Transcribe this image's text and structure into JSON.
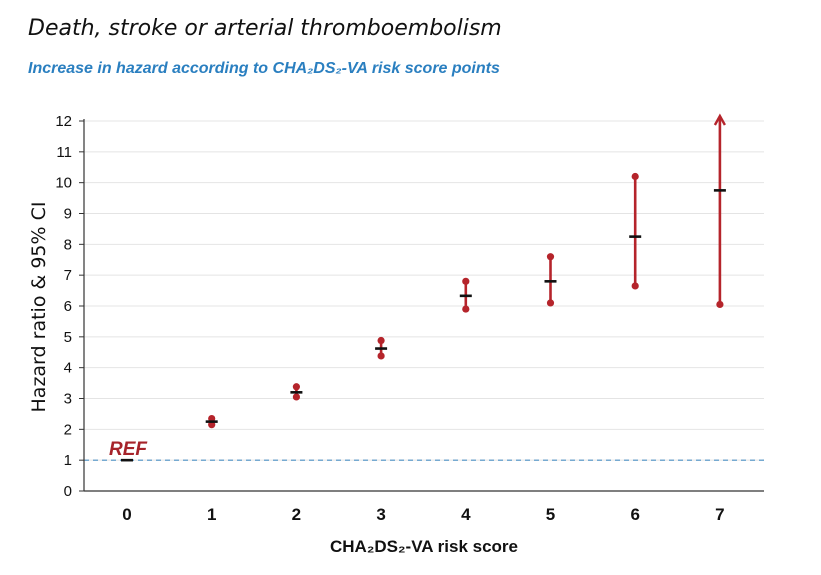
{
  "title": "Death, stroke or arterial thromboembolism",
  "subtitle": "Increase in hazard according to CHA₂DS₂-VA risk score points",
  "colors": {
    "ci": "#b5242b",
    "point": "#111111",
    "ref_line": "#4a90c4",
    "subtitle": "#2a7fc0",
    "axis": "#333333"
  },
  "chart_data": {
    "type": "errorbar",
    "title": "Death, stroke or arterial thromboembolism",
    "subtitle": "Increase in hazard according to CHA₂DS₂-VA risk score points",
    "xlabel": "CHA₂DS₂-VA risk score",
    "ylabel": "Hazard ratio & 95% CI",
    "categories": [
      "0",
      "1",
      "2",
      "3",
      "4",
      "5",
      "6",
      "7"
    ],
    "ylim": [
      0,
      12
    ],
    "yticks": [
      0,
      1,
      2,
      3,
      4,
      5,
      6,
      7,
      8,
      9,
      10,
      11,
      12
    ],
    "grid": true,
    "reference_line": 1,
    "reference_label": "REF",
    "points": [
      {
        "x": "0",
        "hr": 1.0,
        "lower": null,
        "upper": null
      },
      {
        "x": "1",
        "hr": 2.25,
        "lower": 2.15,
        "upper": 2.35
      },
      {
        "x": "2",
        "hr": 3.2,
        "lower": 3.05,
        "upper": 3.38
      },
      {
        "x": "3",
        "hr": 4.62,
        "lower": 4.38,
        "upper": 4.88
      },
      {
        "x": "4",
        "hr": 6.33,
        "lower": 5.9,
        "upper": 6.8
      },
      {
        "x": "5",
        "hr": 6.8,
        "lower": 6.1,
        "upper": 7.6
      },
      {
        "x": "6",
        "hr": 8.25,
        "lower": 6.65,
        "upper": 10.2
      },
      {
        "x": "7",
        "hr": 9.75,
        "lower": 6.05,
        "upper": 12.2,
        "upper_arrow": true
      }
    ]
  }
}
